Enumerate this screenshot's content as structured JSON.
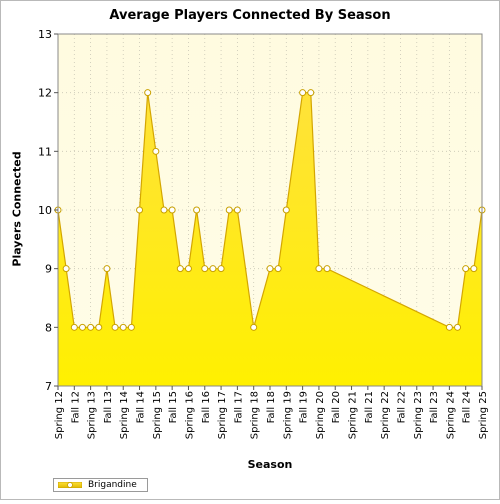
{
  "chart_data": {
    "type": "area",
    "title": "Average Players Connected By Season",
    "xlabel": "Season",
    "ylabel": "Players Connected",
    "ylim": [
      7,
      13
    ],
    "yticks": [
      7,
      8,
      9,
      10,
      11,
      12,
      13
    ],
    "grid": true,
    "legend_position": "bottom-left",
    "categories": [
      "Spring 12",
      "Fall 12",
      "Spring 13",
      "Fall 13",
      "Spring 14",
      "Fall 14",
      "Spring 15",
      "Fall 15",
      "Spring 16",
      "Fall 16",
      "Spring 17",
      "Fall 17",
      "Spring 18",
      "Fall 18",
      "Spring 19",
      "Fall 19",
      "Spring 20",
      "Fall 20",
      "Spring 21",
      "Fall 21",
      "Spring 22",
      "Fall 22",
      "Spring 23",
      "Fall 23",
      "Spring 24",
      "Fall 24",
      "Spring 25"
    ],
    "series": [
      {
        "name": "Brigandine",
        "color": "#ffd700",
        "points": [
          {
            "x": 0,
            "y": 10
          },
          {
            "x": 0.5,
            "y": 9
          },
          {
            "x": 1,
            "y": 8
          },
          {
            "x": 1.5,
            "y": 8
          },
          {
            "x": 2,
            "y": 8
          },
          {
            "x": 2.5,
            "y": 8
          },
          {
            "x": 3,
            "y": 9
          },
          {
            "x": 3.5,
            "y": 8
          },
          {
            "x": 4,
            "y": 8
          },
          {
            "x": 4.5,
            "y": 8
          },
          {
            "x": 5,
            "y": 10
          },
          {
            "x": 5.5,
            "y": 12
          },
          {
            "x": 6,
            "y": 11
          },
          {
            "x": 6.5,
            "y": 10
          },
          {
            "x": 7,
            "y": 10
          },
          {
            "x": 7.5,
            "y": 9
          },
          {
            "x": 8,
            "y": 9
          },
          {
            "x": 8.5,
            "y": 10
          },
          {
            "x": 9,
            "y": 9
          },
          {
            "x": 9.5,
            "y": 9
          },
          {
            "x": 10,
            "y": 9
          },
          {
            "x": 10.5,
            "y": 10
          },
          {
            "x": 11,
            "y": 10
          },
          {
            "x": 12,
            "y": 8
          },
          {
            "x": 13,
            "y": 9
          },
          {
            "x": 13.5,
            "y": 9
          },
          {
            "x": 14,
            "y": 10
          },
          {
            "x": 15,
            "y": 12
          },
          {
            "x": 15.5,
            "y": 12
          },
          {
            "x": 16,
            "y": 9
          },
          {
            "x": 16.5,
            "y": 9
          },
          {
            "x": 24,
            "y": 8
          },
          {
            "x": 24.5,
            "y": 8
          },
          {
            "x": 25,
            "y": 9
          },
          {
            "x": 25.5,
            "y": 9
          },
          {
            "x": 26,
            "y": 10
          }
        ]
      }
    ]
  }
}
